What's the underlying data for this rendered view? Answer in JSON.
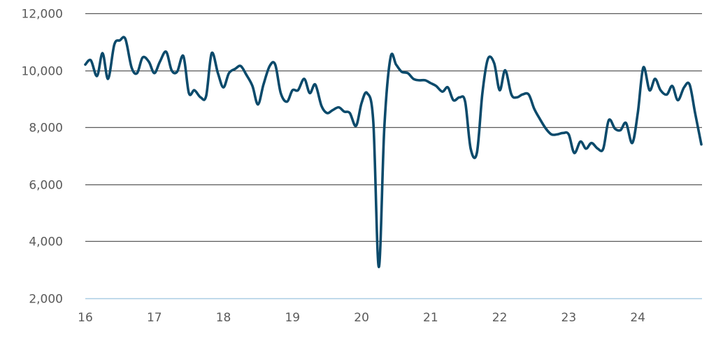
{
  "chart_data": {
    "type": "line",
    "title": "",
    "xlabel": "",
    "ylabel": "",
    "xlim": [
      16,
      24.93
    ],
    "ylim": [
      2000,
      12000
    ],
    "x_ticks": [
      {
        "value": 16,
        "label": "16"
      },
      {
        "value": 17,
        "label": "17"
      },
      {
        "value": 18,
        "label": "18"
      },
      {
        "value": 19,
        "label": "19"
      },
      {
        "value": 20,
        "label": "20"
      },
      {
        "value": 21,
        "label": "21"
      },
      {
        "value": 22,
        "label": "22"
      },
      {
        "value": 23,
        "label": "23"
      },
      {
        "value": 24,
        "label": "24"
      }
    ],
    "y_ticks": [
      {
        "value": 2000,
        "label": "2,000"
      },
      {
        "value": 4000,
        "label": "4,000"
      },
      {
        "value": 6000,
        "label": "6,000"
      },
      {
        "value": 8000,
        "label": "8,000"
      },
      {
        "value": 10000,
        "label": "10,000"
      },
      {
        "value": 12000,
        "label": "12,000"
      }
    ],
    "grid": true,
    "colors": {
      "line": "#0b4a6b",
      "grid": "#595959",
      "baseline": "#a9cde3"
    },
    "series": [
      {
        "values": [
          [
            16.0,
            10200
          ],
          [
            16.08,
            10350
          ],
          [
            16.17,
            9800
          ],
          [
            16.25,
            10600
          ],
          [
            16.33,
            9700
          ],
          [
            16.42,
            10900
          ],
          [
            16.5,
            11050
          ],
          [
            16.58,
            11100
          ],
          [
            16.67,
            10100
          ],
          [
            16.75,
            9900
          ],
          [
            16.83,
            10450
          ],
          [
            16.92,
            10300
          ],
          [
            17.0,
            9900
          ],
          [
            17.08,
            10300
          ],
          [
            17.17,
            10650
          ],
          [
            17.25,
            10000
          ],
          [
            17.33,
            9950
          ],
          [
            17.42,
            10500
          ],
          [
            17.5,
            9200
          ],
          [
            17.58,
            9300
          ],
          [
            17.67,
            9050
          ],
          [
            17.75,
            9100
          ],
          [
            17.83,
            10600
          ],
          [
            17.92,
            9900
          ],
          [
            18.0,
            9400
          ],
          [
            18.08,
            9900
          ],
          [
            18.17,
            10050
          ],
          [
            18.25,
            10150
          ],
          [
            18.33,
            9850
          ],
          [
            18.42,
            9450
          ],
          [
            18.5,
            8800
          ],
          [
            18.58,
            9500
          ],
          [
            18.67,
            10150
          ],
          [
            18.75,
            10200
          ],
          [
            18.83,
            9200
          ],
          [
            18.92,
            8900
          ],
          [
            19.0,
            9300
          ],
          [
            19.08,
            9300
          ],
          [
            19.17,
            9700
          ],
          [
            19.25,
            9200
          ],
          [
            19.33,
            9500
          ],
          [
            19.42,
            8750
          ],
          [
            19.5,
            8500
          ],
          [
            19.58,
            8600
          ],
          [
            19.67,
            8700
          ],
          [
            19.75,
            8550
          ],
          [
            19.83,
            8500
          ],
          [
            19.92,
            8050
          ],
          [
            20.0,
            8850
          ],
          [
            20.08,
            9200
          ],
          [
            20.17,
            8200
          ],
          [
            20.25,
            3100
          ],
          [
            20.33,
            8000
          ],
          [
            20.42,
            10450
          ],
          [
            20.5,
            10200
          ],
          [
            20.58,
            9950
          ],
          [
            20.67,
            9900
          ],
          [
            20.75,
            9700
          ],
          [
            20.83,
            9650
          ],
          [
            20.92,
            9650
          ],
          [
            21.0,
            9550
          ],
          [
            21.08,
            9450
          ],
          [
            21.17,
            9250
          ],
          [
            21.25,
            9400
          ],
          [
            21.33,
            8950
          ],
          [
            21.42,
            9050
          ],
          [
            21.5,
            8900
          ],
          [
            21.58,
            7250
          ],
          [
            21.67,
            7100
          ],
          [
            21.75,
            9200
          ],
          [
            21.83,
            10400
          ],
          [
            21.92,
            10250
          ],
          [
            22.0,
            9300
          ],
          [
            22.08,
            10000
          ],
          [
            22.17,
            9150
          ],
          [
            22.25,
            9050
          ],
          [
            22.33,
            9150
          ],
          [
            22.42,
            9150
          ],
          [
            22.5,
            8650
          ],
          [
            22.58,
            8300
          ],
          [
            22.67,
            7950
          ],
          [
            22.75,
            7750
          ],
          [
            22.83,
            7750
          ],
          [
            22.92,
            7800
          ],
          [
            23.0,
            7750
          ],
          [
            23.08,
            7100
          ],
          [
            23.17,
            7500
          ],
          [
            23.25,
            7250
          ],
          [
            23.33,
            7450
          ],
          [
            23.42,
            7250
          ],
          [
            23.5,
            7250
          ],
          [
            23.58,
            8250
          ],
          [
            23.67,
            7950
          ],
          [
            23.75,
            7900
          ],
          [
            23.83,
            8150
          ],
          [
            23.92,
            7450
          ],
          [
            24.0,
            8500
          ],
          [
            24.08,
            10100
          ],
          [
            24.17,
            9300
          ],
          [
            24.25,
            9700
          ],
          [
            24.33,
            9300
          ],
          [
            24.42,
            9150
          ],
          [
            24.5,
            9450
          ],
          [
            24.58,
            8950
          ],
          [
            24.67,
            9400
          ],
          [
            24.75,
            9500
          ],
          [
            24.83,
            8500
          ],
          [
            24.92,
            7400
          ]
        ]
      }
    ]
  }
}
